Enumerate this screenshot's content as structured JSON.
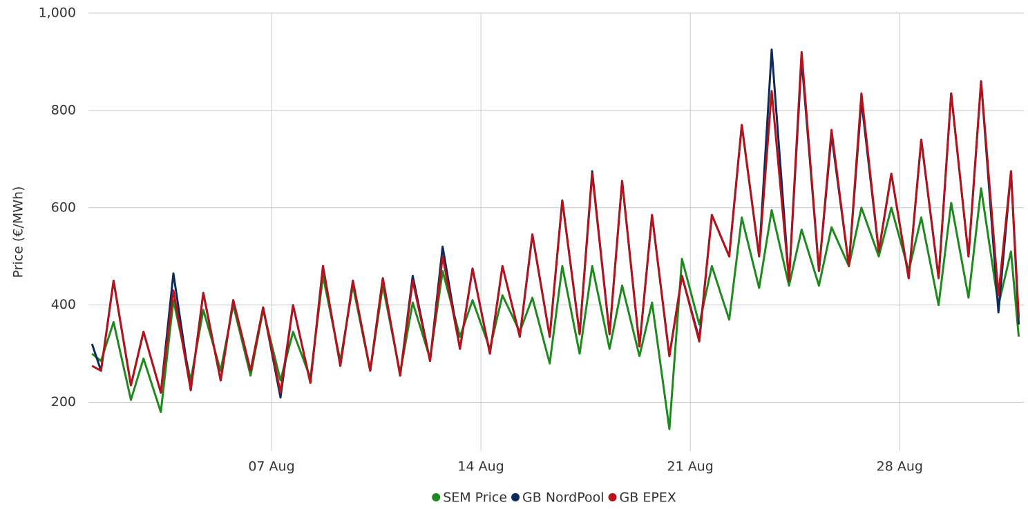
{
  "chart_data": {
    "type": "line",
    "y_label": "Price (€/MWh)",
    "x": [
      1,
      1.3,
      1.72,
      2.3,
      2.72,
      3.3,
      3.72,
      4.3,
      4.72,
      5.3,
      5.72,
      6.3,
      6.72,
      7.3,
      7.72,
      8.3,
      8.72,
      9.3,
      9.72,
      10.3,
      10.72,
      11.3,
      11.72,
      12.3,
      12.72,
      13.3,
      13.72,
      14.3,
      14.72,
      15.3,
      15.72,
      16.3,
      16.72,
      17.3,
      17.72,
      18.3,
      18.72,
      19.3,
      19.72,
      20.3,
      20.72,
      21.3,
      21.72,
      22.3,
      22.72,
      23.3,
      23.72,
      24.3,
      24.72,
      25.3,
      25.72,
      26.3,
      26.72,
      27.3,
      27.72,
      28.3,
      28.72,
      29.3,
      29.72,
      30.3,
      30.72,
      31.3,
      31.72,
      31.98
    ],
    "series": [
      {
        "name": "SEM Price",
        "color": "#1e8a1e",
        "values": [
          300,
          285,
          365,
          205,
          290,
          180,
          410,
          245,
          390,
          265,
          400,
          255,
          390,
          245,
          345,
          250,
          460,
          285,
          440,
          265,
          440,
          260,
          405,
          290,
          470,
          335,
          410,
          310,
          420,
          345,
          415,
          280,
          480,
          300,
          480,
          310,
          440,
          295,
          405,
          145,
          495,
          360,
          480,
          370,
          580,
          435,
          595,
          440,
          555,
          440,
          560,
          480,
          600,
          500,
          600,
          470,
          580,
          400,
          610,
          415,
          640,
          400,
          510,
          335
        ]
      },
      {
        "name": "GB NordPool",
        "color": "#0d2a5a",
        "values": [
          320,
          265,
          450,
          235,
          345,
          220,
          465,
          225,
          425,
          245,
          410,
          265,
          395,
          210,
          400,
          240,
          480,
          275,
          450,
          265,
          455,
          255,
          460,
          285,
          520,
          310,
          475,
          300,
          480,
          335,
          545,
          335,
          615,
          340,
          675,
          340,
          655,
          315,
          585,
          295,
          460,
          330,
          585,
          500,
          770,
          500,
          925,
          450,
          905,
          470,
          750,
          480,
          820,
          510,
          670,
          455,
          740,
          455,
          835,
          500,
          860,
          385,
          675,
          360
        ]
      },
      {
        "name": "GB EPEX",
        "color": "#b5121b",
        "values": [
          275,
          265,
          450,
          235,
          345,
          220,
          430,
          225,
          425,
          245,
          410,
          265,
          395,
          220,
          400,
          240,
          480,
          275,
          450,
          265,
          455,
          255,
          450,
          285,
          500,
          310,
          475,
          300,
          480,
          335,
          545,
          335,
          615,
          340,
          670,
          340,
          655,
          315,
          585,
          295,
          460,
          325,
          585,
          500,
          770,
          500,
          840,
          450,
          920,
          470,
          760,
          480,
          835,
          510,
          670,
          455,
          740,
          455,
          835,
          500,
          860,
          420,
          675,
          375
        ]
      }
    ],
    "xlim": [
      0.88,
      32.15
    ],
    "xticks": [
      {
        "value": 7,
        "label": "07 Aug"
      },
      {
        "value": 14,
        "label": "14 Aug"
      },
      {
        "value": 21,
        "label": "21 Aug"
      },
      {
        "value": 28,
        "label": "28 Aug"
      }
    ],
    "ylim": [
      100,
      1000
    ],
    "yticks": [
      200,
      400,
      600,
      800,
      {
        "value": 1000,
        "label": "1,000"
      }
    ],
    "grid": true
  }
}
